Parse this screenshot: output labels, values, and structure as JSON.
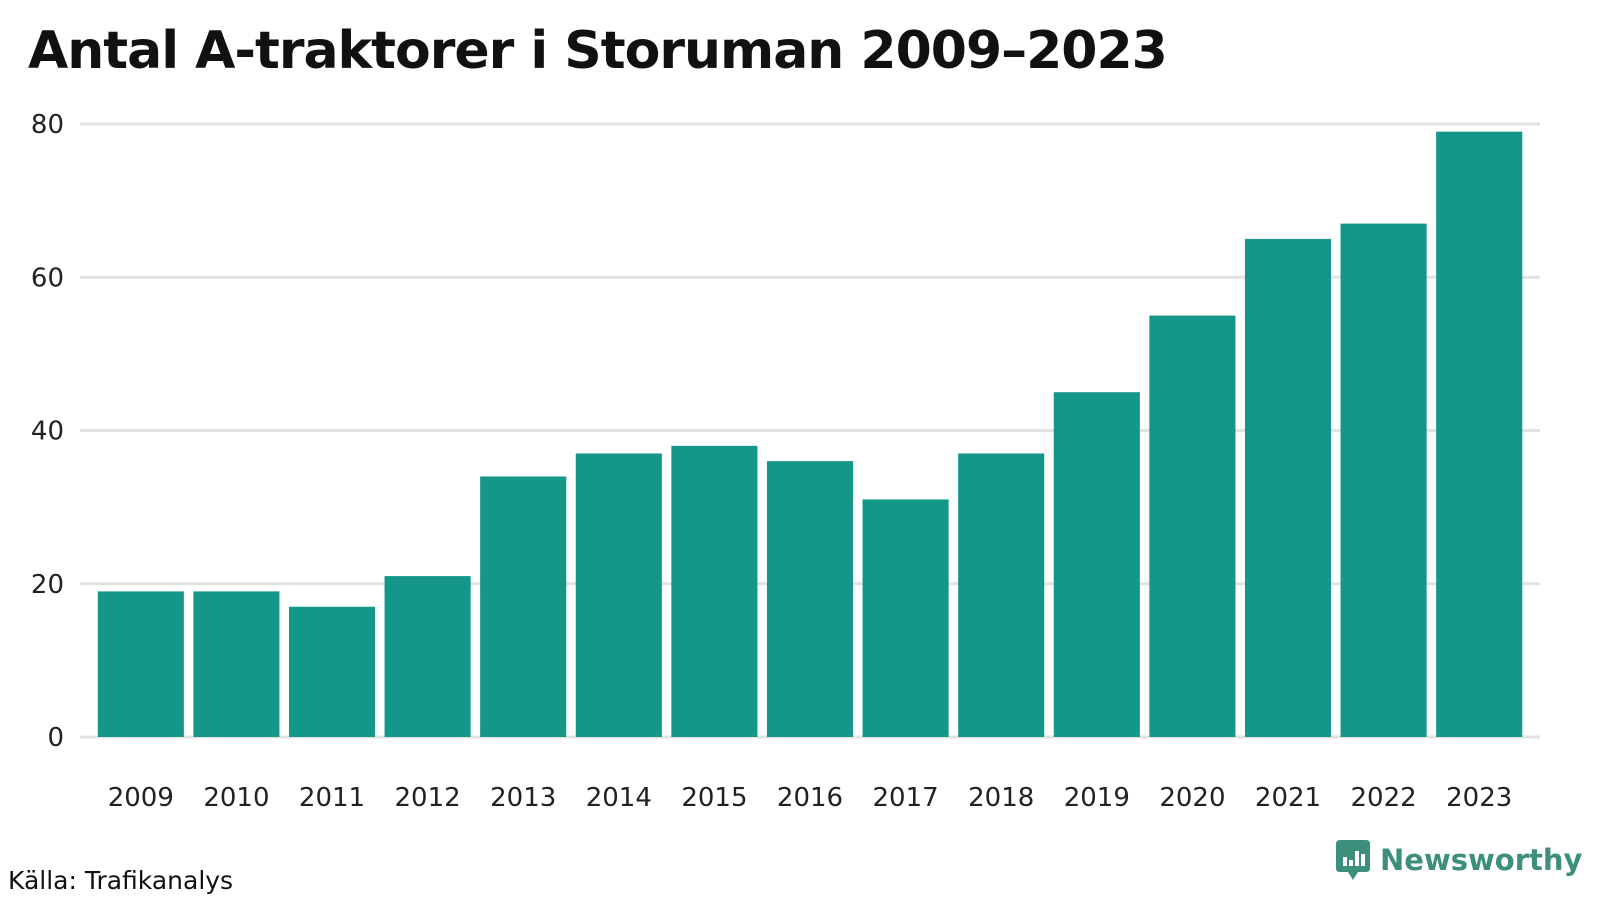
{
  "chart_data": {
    "type": "bar",
    "title": "Antal A-traktorer i Storuman 2009–2023",
    "categories": [
      "2009",
      "2010",
      "2011",
      "2012",
      "2013",
      "2014",
      "2015",
      "2016",
      "2017",
      "2018",
      "2019",
      "2020",
      "2021",
      "2022",
      "2023"
    ],
    "values": [
      19,
      19,
      17,
      21,
      34,
      37,
      38,
      36,
      31,
      37,
      45,
      55,
      65,
      67,
      79
    ],
    "ylim": [
      0,
      80
    ],
    "yticks": [
      0,
      20,
      40,
      60,
      80
    ],
    "grid": true,
    "bar_color": "#149688",
    "grid_color": "#e2e2e2"
  },
  "footer": {
    "source": "Källa: Trafikanalys",
    "brand": "Newsworthy",
    "brand_color": "#3d8f7c",
    "brand_icon": "newsworthy-logo-icon"
  }
}
